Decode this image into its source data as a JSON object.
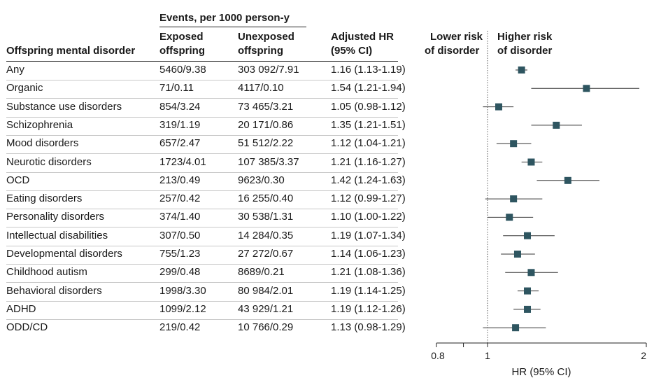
{
  "header": {
    "group_label": "Events, per 1000 person-y",
    "col_disorder": "Offspring mental disorder",
    "col_exposed": [
      "Exposed",
      "offspring"
    ],
    "col_unexposed": [
      "Unexposed",
      "offspring"
    ],
    "col_hr": [
      "Adjusted HR",
      "(95% CI)"
    ],
    "lower_risk": [
      "Lower risk",
      "of disorder"
    ],
    "higher_risk": [
      "Higher risk",
      "of disorder"
    ]
  },
  "rows": [
    {
      "label": "Any",
      "exposed": "5460/9.38",
      "unexposed": "303 092/7.91",
      "hr_text": "1.16 (1.13-1.19)"
    },
    {
      "label": "Organic",
      "exposed": "71/0.11",
      "unexposed": "4117/0.10",
      "hr_text": "1.54 (1.21-1.94)"
    },
    {
      "label": "Substance use disorders",
      "exposed": "854/3.24",
      "unexposed": "73 465/3.21",
      "hr_text": "1.05 (0.98-1.12)"
    },
    {
      "label": "Schizophrenia",
      "exposed": "319/1.19",
      "unexposed": "20 171/0.86",
      "hr_text": "1.35 (1.21-1.51)"
    },
    {
      "label": "Mood disorders",
      "exposed": "657/2.47",
      "unexposed": "51 512/2.22",
      "hr_text": "1.12 (1.04-1.21)"
    },
    {
      "label": "Neurotic disorders",
      "exposed": "1723/4.01",
      "unexposed": "107 385/3.37",
      "hr_text": "1.21 (1.16-1.27)"
    },
    {
      "label": "OCD",
      "exposed": "213/0.49",
      "unexposed": "9623/0.30",
      "hr_text": "1.42 (1.24-1.63)"
    },
    {
      "label": "Eating disorders",
      "exposed": "257/0.42",
      "unexposed": "16 255/0.40",
      "hr_text": "1.12 (0.99-1.27)"
    },
    {
      "label": "Personality disorders",
      "exposed": "374/1.40",
      "unexposed": "30 538/1.31",
      "hr_text": "1.10 (1.00-1.22)"
    },
    {
      "label": "Intellectual disabilities",
      "exposed": "307/0.50",
      "unexposed": "14 284/0.35",
      "hr_text": "1.19 (1.07-1.34)"
    },
    {
      "label": "Developmental disorders",
      "exposed": "755/1.23",
      "unexposed": "27 272/0.67",
      "hr_text": "1.14 (1.06-1.23)"
    },
    {
      "label": "Childhood autism",
      "exposed": "299/0.48",
      "unexposed": "8689/0.21",
      "hr_text": "1.21 (1.08-1.36)"
    },
    {
      "label": "Behavioral disorders",
      "exposed": "1998/3.30",
      "unexposed": "80 984/2.01",
      "hr_text": "1.19 (1.14-1.25)"
    },
    {
      "label": "ADHD",
      "exposed": "1099/2.12",
      "unexposed": "43 929/1.21",
      "hr_text": "1.19 (1.12-1.26)"
    },
    {
      "label": "ODD/CD",
      "exposed": "219/0.42",
      "unexposed": "10 766/0.29",
      "hr_text": "1.13 (0.98-1.29)"
    }
  ],
  "chart_data": {
    "type": "scatter",
    "xlabel": "HR (95% CI)",
    "xscale": "log",
    "xlim": [
      0.8,
      2
    ],
    "xticks": [
      0.8,
      1,
      2
    ],
    "xtick_labels": [
      "0.8",
      "1",
      "2"
    ],
    "minor_ticks": [
      0.9
    ],
    "reference_line": 1,
    "categories": [
      "Any",
      "Organic",
      "Substance use disorders",
      "Schizophrenia",
      "Mood disorders",
      "Neurotic disorders",
      "OCD",
      "Eating disorders",
      "Personality disorders",
      "Intellectual disabilities",
      "Developmental disorders",
      "Childhood autism",
      "Behavioral disorders",
      "ADHD",
      "ODD/CD"
    ],
    "hr": [
      1.16,
      1.54,
      1.05,
      1.35,
      1.12,
      1.21,
      1.42,
      1.12,
      1.1,
      1.19,
      1.14,
      1.21,
      1.19,
      1.19,
      1.13
    ],
    "lower": [
      1.13,
      1.21,
      0.98,
      1.21,
      1.04,
      1.16,
      1.24,
      0.99,
      1.0,
      1.07,
      1.06,
      1.08,
      1.14,
      1.12,
      0.98
    ],
    "upper": [
      1.19,
      1.94,
      1.12,
      1.51,
      1.21,
      1.27,
      1.63,
      1.27,
      1.22,
      1.34,
      1.23,
      1.36,
      1.25,
      1.26,
      1.29
    ],
    "marker_color": "#2e5560",
    "line_color": "#333333"
  }
}
